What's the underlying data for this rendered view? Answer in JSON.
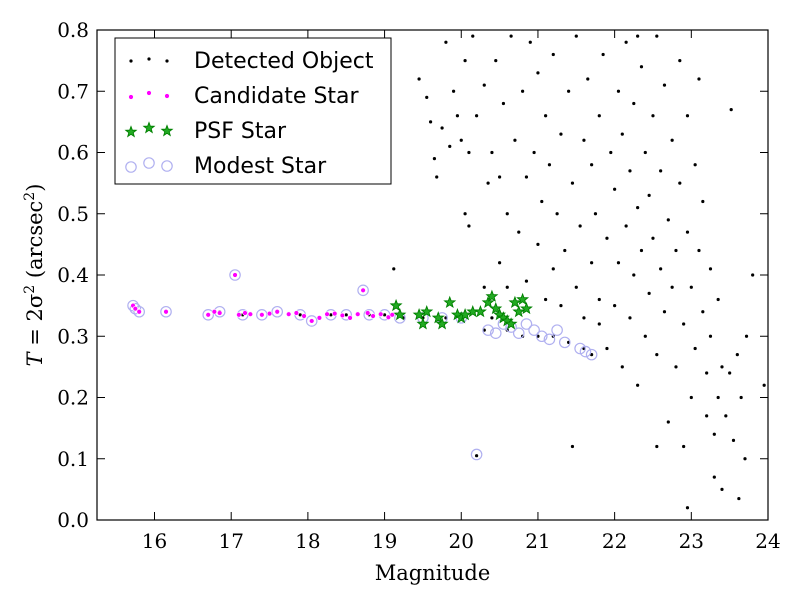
{
  "chart_data": {
    "type": "scatter",
    "title": "",
    "xlabel": "Magnitude",
    "ylabel": {
      "prefix": "T",
      "middle": " = 2σ",
      "exp": "2",
      "unit_open": " (arcsec",
      "unit_exp": "2",
      "unit_close": ")"
    },
    "xlim": [
      15.25,
      24.0
    ],
    "ylim": [
      0.0,
      0.8
    ],
    "xticks": [
      16,
      17,
      18,
      19,
      20,
      21,
      22,
      23,
      24
    ],
    "yticks": [
      0.0,
      0.1,
      0.2,
      0.3,
      0.4,
      0.5,
      0.6,
      0.7,
      0.8
    ],
    "ytick_labels": [
      "0.0",
      "0.1",
      "0.2",
      "0.3",
      "0.4",
      "0.5",
      "0.6",
      "0.7",
      "0.8"
    ],
    "grid": false,
    "legend_position": "top-left",
    "colors": {
      "detected": "#000000",
      "candidate": "#ff00ff",
      "psf": "#008000",
      "modest": "#b0b0f0"
    },
    "series": [
      {
        "name": "Detected Object",
        "marker": "dot",
        "points": [
          [
            15.72,
            0.35
          ],
          [
            15.75,
            0.345
          ],
          [
            15.8,
            0.34
          ],
          [
            16.15,
            0.34
          ],
          [
            16.7,
            0.335
          ],
          [
            16.85,
            0.34
          ],
          [
            17.05,
            0.4
          ],
          [
            17.15,
            0.335
          ],
          [
            17.4,
            0.335
          ],
          [
            17.6,
            0.34
          ],
          [
            17.9,
            0.335
          ],
          [
            18.05,
            0.325
          ],
          [
            18.3,
            0.335
          ],
          [
            18.5,
            0.335
          ],
          [
            18.72,
            0.375
          ],
          [
            18.8,
            0.335
          ],
          [
            19.0,
            0.335
          ],
          [
            19.12,
            0.41
          ],
          [
            19.25,
            0.33
          ],
          [
            19.5,
            0.33
          ],
          [
            19.8,
            0.33
          ],
          [
            20.0,
            0.33
          ],
          [
            20.2,
            0.105
          ],
          [
            20.3,
            0.31
          ],
          [
            20.4,
            0.33
          ],
          [
            20.6,
            0.31
          ],
          [
            20.8,
            0.3
          ],
          [
            21.0,
            0.3
          ],
          [
            21.2,
            0.3
          ],
          [
            21.4,
            0.29
          ],
          [
            21.6,
            0.28
          ],
          [
            21.7,
            0.27
          ],
          [
            21.8,
            0.32
          ],
          [
            19.45,
            0.72
          ],
          [
            19.55,
            0.69
          ],
          [
            19.6,
            0.65
          ],
          [
            19.65,
            0.59
          ],
          [
            19.68,
            0.56
          ],
          [
            19.75,
            0.64
          ],
          [
            19.8,
            0.78
          ],
          [
            19.85,
            0.61
          ],
          [
            19.9,
            0.7
          ],
          [
            19.95,
            0.66
          ],
          [
            20.0,
            0.62
          ],
          [
            20.05,
            0.75
          ],
          [
            20.05,
            0.5
          ],
          [
            20.1,
            0.6
          ],
          [
            20.1,
            0.48
          ],
          [
            20.15,
            0.79
          ],
          [
            20.2,
            0.66
          ],
          [
            20.3,
            0.71
          ],
          [
            20.3,
            0.38
          ],
          [
            20.35,
            0.55
          ],
          [
            20.4,
            0.6
          ],
          [
            20.45,
            0.75
          ],
          [
            20.5,
            0.56
          ],
          [
            20.5,
            0.42
          ],
          [
            20.55,
            0.68
          ],
          [
            20.6,
            0.5
          ],
          [
            20.6,
            0.38
          ],
          [
            20.65,
            0.79
          ],
          [
            20.7,
            0.62
          ],
          [
            20.75,
            0.47
          ],
          [
            20.8,
            0.7
          ],
          [
            20.85,
            0.56
          ],
          [
            20.85,
            0.39
          ],
          [
            20.9,
            0.78
          ],
          [
            20.95,
            0.6
          ],
          [
            21.0,
            0.45
          ],
          [
            21.0,
            0.73
          ],
          [
            21.05,
            0.52
          ],
          [
            21.1,
            0.36
          ],
          [
            21.1,
            0.66
          ],
          [
            21.15,
            0.58
          ],
          [
            21.2,
            0.41
          ],
          [
            21.2,
            0.76
          ],
          [
            21.25,
            0.5
          ],
          [
            21.3,
            0.63
          ],
          [
            21.3,
            0.35
          ],
          [
            21.35,
            0.44
          ],
          [
            21.4,
            0.7
          ],
          [
            21.45,
            0.55
          ],
          [
            21.5,
            0.38
          ],
          [
            21.5,
            0.79
          ],
          [
            21.55,
            0.48
          ],
          [
            21.6,
            0.62
          ],
          [
            21.6,
            0.33
          ],
          [
            21.65,
            0.72
          ],
          [
            21.7,
            0.42
          ],
          [
            21.7,
            0.58
          ],
          [
            21.75,
            0.5
          ],
          [
            21.8,
            0.66
          ],
          [
            21.8,
            0.36
          ],
          [
            21.85,
            0.76
          ],
          [
            21.9,
            0.46
          ],
          [
            21.9,
            0.28
          ],
          [
            21.95,
            0.6
          ],
          [
            22.0,
            0.54
          ],
          [
            22.0,
            0.35
          ],
          [
            22.05,
            0.7
          ],
          [
            22.05,
            0.42
          ],
          [
            22.1,
            0.25
          ],
          [
            22.1,
            0.63
          ],
          [
            22.15,
            0.48
          ],
          [
            22.15,
            0.78
          ],
          [
            22.2,
            0.33
          ],
          [
            22.2,
            0.57
          ],
          [
            22.25,
            0.4
          ],
          [
            22.25,
            0.68
          ],
          [
            22.3,
            0.51
          ],
          [
            22.3,
            0.22
          ],
          [
            22.35,
            0.44
          ],
          [
            22.35,
            0.74
          ],
          [
            22.4,
            0.3
          ],
          [
            22.4,
            0.6
          ],
          [
            22.45,
            0.37
          ],
          [
            22.45,
            0.53
          ],
          [
            22.5,
            0.46
          ],
          [
            22.5,
            0.66
          ],
          [
            22.55,
            0.27
          ],
          [
            22.55,
            0.79
          ],
          [
            22.6,
            0.41
          ],
          [
            22.6,
            0.57
          ],
          [
            22.65,
            0.34
          ],
          [
            22.65,
            0.71
          ],
          [
            22.7,
            0.49
          ],
          [
            22.7,
            0.16
          ],
          [
            22.75,
            0.38
          ],
          [
            22.75,
            0.62
          ],
          [
            22.8,
            0.44
          ],
          [
            22.8,
            0.25
          ],
          [
            22.85,
            0.55
          ],
          [
            22.85,
            0.75
          ],
          [
            22.9,
            0.32
          ],
          [
            22.9,
            0.12
          ],
          [
            22.95,
            0.47
          ],
          [
            22.95,
            0.66
          ],
          [
            23.0,
            0.38
          ],
          [
            23.0,
            0.2
          ],
          [
            23.05,
            0.58
          ],
          [
            23.05,
            0.28
          ],
          [
            23.1,
            0.44
          ],
          [
            23.1,
            0.72
          ],
          [
            23.15,
            0.34
          ],
          [
            23.15,
            0.52
          ],
          [
            23.2,
            0.24
          ],
          [
            23.2,
            0.17
          ],
          [
            23.25,
            0.41
          ],
          [
            23.25,
            0.3
          ],
          [
            23.3,
            0.14
          ],
          [
            23.3,
            0.07
          ],
          [
            23.35,
            0.36
          ],
          [
            23.35,
            0.2
          ],
          [
            23.4,
            0.25
          ],
          [
            23.4,
            0.05
          ],
          [
            23.45,
            0.17
          ],
          [
            23.5,
            0.24
          ],
          [
            23.52,
            0.67
          ],
          [
            23.55,
            0.13
          ],
          [
            23.6,
            0.27
          ],
          [
            23.62,
            0.035
          ],
          [
            23.65,
            0.2
          ],
          [
            23.7,
            0.1
          ],
          [
            23.72,
            0.3
          ],
          [
            23.8,
            0.4
          ],
          [
            23.95,
            0.22
          ],
          [
            22.95,
            0.02
          ],
          [
            22.55,
            0.12
          ],
          [
            22.3,
            0.79
          ],
          [
            21.45,
            0.12
          ]
        ]
      },
      {
        "name": "Candidate Star",
        "marker": "circle-magenta",
        "points": [
          [
            15.72,
            0.35
          ],
          [
            15.75,
            0.345
          ],
          [
            15.8,
            0.34
          ],
          [
            16.15,
            0.34
          ],
          [
            16.7,
            0.335
          ],
          [
            16.78,
            0.34
          ],
          [
            16.85,
            0.338
          ],
          [
            17.05,
            0.4
          ],
          [
            17.1,
            0.335
          ],
          [
            17.18,
            0.338
          ],
          [
            17.25,
            0.336
          ],
          [
            17.4,
            0.335
          ],
          [
            17.5,
            0.337
          ],
          [
            17.6,
            0.34
          ],
          [
            17.75,
            0.336
          ],
          [
            17.85,
            0.338
          ],
          [
            17.95,
            0.333
          ],
          [
            18.05,
            0.325
          ],
          [
            18.15,
            0.33
          ],
          [
            18.25,
            0.336
          ],
          [
            18.35,
            0.337
          ],
          [
            18.45,
            0.334
          ],
          [
            18.55,
            0.33
          ],
          [
            18.65,
            0.336
          ],
          [
            18.72,
            0.375
          ],
          [
            18.78,
            0.338
          ],
          [
            18.85,
            0.333
          ],
          [
            18.95,
            0.336
          ],
          [
            19.05,
            0.331
          ],
          [
            19.1,
            0.335
          ]
        ]
      },
      {
        "name": "PSF Star",
        "marker": "star",
        "points": [
          [
            19.15,
            0.35
          ],
          [
            19.2,
            0.335
          ],
          [
            19.45,
            0.335
          ],
          [
            19.5,
            0.32
          ],
          [
            19.55,
            0.34
          ],
          [
            19.7,
            0.33
          ],
          [
            19.75,
            0.32
          ],
          [
            19.85,
            0.355
          ],
          [
            19.95,
            0.335
          ],
          [
            20.0,
            0.33
          ],
          [
            20.05,
            0.335
          ],
          [
            20.15,
            0.34
          ],
          [
            20.25,
            0.34
          ],
          [
            20.35,
            0.355
          ],
          [
            20.4,
            0.365
          ],
          [
            20.45,
            0.345
          ],
          [
            20.5,
            0.335
          ],
          [
            20.55,
            0.33
          ],
          [
            20.6,
            0.325
          ],
          [
            20.65,
            0.32
          ],
          [
            20.7,
            0.355
          ],
          [
            20.75,
            0.34
          ],
          [
            20.8,
            0.36
          ],
          [
            20.85,
            0.345
          ]
        ]
      },
      {
        "name": "Modest Star",
        "marker": "circle-open",
        "points": [
          [
            15.72,
            0.35
          ],
          [
            15.75,
            0.345
          ],
          [
            15.8,
            0.34
          ],
          [
            16.15,
            0.34
          ],
          [
            16.7,
            0.335
          ],
          [
            16.85,
            0.34
          ],
          [
            17.05,
            0.4
          ],
          [
            17.15,
            0.335
          ],
          [
            17.4,
            0.335
          ],
          [
            17.6,
            0.34
          ],
          [
            17.9,
            0.335
          ],
          [
            18.05,
            0.325
          ],
          [
            18.3,
            0.335
          ],
          [
            18.5,
            0.335
          ],
          [
            18.72,
            0.375
          ],
          [
            18.8,
            0.335
          ],
          [
            19.0,
            0.335
          ],
          [
            19.2,
            0.33
          ],
          [
            19.5,
            0.33
          ],
          [
            19.75,
            0.33
          ],
          [
            20.0,
            0.33
          ],
          [
            20.2,
            0.107
          ],
          [
            20.35,
            0.31
          ],
          [
            20.45,
            0.305
          ],
          [
            20.55,
            0.32
          ],
          [
            20.65,
            0.315
          ],
          [
            20.75,
            0.305
          ],
          [
            20.85,
            0.32
          ],
          [
            20.95,
            0.31
          ],
          [
            21.05,
            0.3
          ],
          [
            21.15,
            0.295
          ],
          [
            21.25,
            0.31
          ],
          [
            21.35,
            0.29
          ],
          [
            21.55,
            0.28
          ],
          [
            21.62,
            0.275
          ],
          [
            21.7,
            0.27
          ]
        ]
      }
    ]
  }
}
